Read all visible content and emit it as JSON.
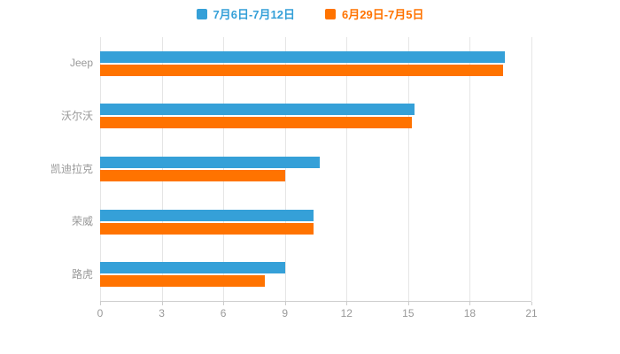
{
  "chart_data": {
    "type": "bar",
    "orientation": "horizontal",
    "title": "",
    "xlabel": "",
    "ylabel": "",
    "categories": [
      "Jeep",
      "沃尔沃",
      "凯迪拉克",
      "荣威",
      "路虎"
    ],
    "series": [
      {
        "name": "7月6日-7月12日",
        "color": "#35a0d8",
        "values": [
          19.7,
          15.3,
          10.7,
          10.4,
          9.0
        ]
      },
      {
        "name": "6月29日-7月5日",
        "color": "#ff7300",
        "values": [
          19.6,
          15.2,
          9.0,
          10.4,
          8.0
        ]
      }
    ],
    "xlim": [
      0,
      21
    ],
    "x_ticks": [
      0,
      3,
      6,
      9,
      12,
      15,
      18,
      21
    ],
    "grid": true,
    "legend_position": "top",
    "colors": {
      "grid_line": "#e5e5e5",
      "axis_line": "#cccccc",
      "label_text": "#999999"
    }
  }
}
